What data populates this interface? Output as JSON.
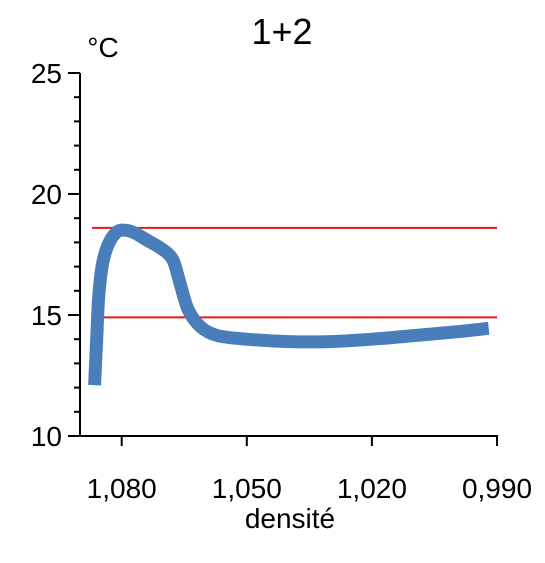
{
  "chart_data": {
    "type": "line",
    "title": "1+2",
    "ylabel": "°C",
    "xlabel": "densité",
    "xlim": [
      1.09,
      0.99
    ],
    "ylim": [
      10,
      25
    ],
    "x_reversed": true,
    "x_ticks": [
      1.08,
      1.05,
      1.02,
      0.99
    ],
    "x_tick_labels": [
      "1,080",
      "1,050",
      "1,020",
      "0,990"
    ],
    "y_ticks": [
      10,
      15,
      20,
      25
    ],
    "y_tick_labels": [
      "10",
      "15",
      "20",
      "25"
    ],
    "series": [
      {
        "color": "#4a7ebb",
        "points": [
          [
            1.0865,
            12.1
          ],
          [
            1.086,
            14.0
          ],
          [
            1.0855,
            15.8
          ],
          [
            1.0845,
            17.2
          ],
          [
            1.083,
            18.0
          ],
          [
            1.081,
            18.45
          ],
          [
            1.079,
            18.5
          ],
          [
            1.077,
            18.4
          ],
          [
            1.074,
            18.1
          ],
          [
            1.071,
            17.8
          ],
          [
            1.069,
            17.55
          ],
          [
            1.0675,
            17.2
          ],
          [
            1.066,
            16.3
          ],
          [
            1.064,
            15.2
          ],
          [
            1.061,
            14.5
          ],
          [
            1.057,
            14.15
          ],
          [
            1.05,
            14.0
          ],
          [
            1.04,
            13.9
          ],
          [
            1.03,
            13.9
          ],
          [
            1.02,
            14.0
          ],
          [
            1.01,
            14.15
          ],
          [
            1.0,
            14.3
          ],
          [
            0.992,
            14.45
          ]
        ]
      }
    ],
    "reference_lines": [
      {
        "y": 18.6,
        "color": "#e31a1c"
      },
      {
        "y": 14.9,
        "color": "#e31a1c"
      }
    ],
    "grid": false
  }
}
